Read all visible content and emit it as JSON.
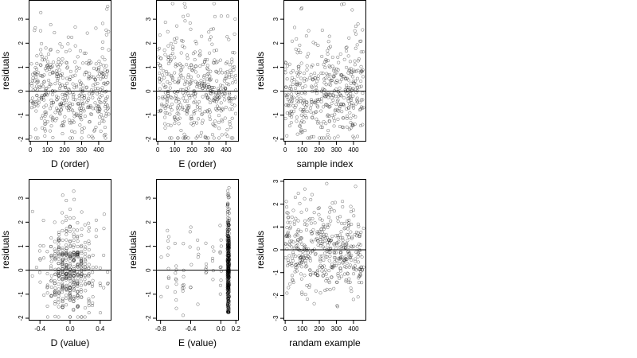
{
  "figure": {
    "background": "#ffffff",
    "point_color": "#000000",
    "point_fill": "none",
    "point_opacity": 0.55,
    "reference_line": {
      "y": 0,
      "color": "#000000"
    }
  },
  "chart_data": [
    {
      "id": "panel-d-order",
      "type": "scatter",
      "xlabel": "D (order)",
      "ylabel": "residuals",
      "xlim": [
        -10,
        475
      ],
      "ylim": [
        -2.1,
        3.8
      ],
      "xticks": [
        0,
        100,
        200,
        300,
        400
      ],
      "xtick_labels": [
        "0",
        "100",
        "200",
        "300",
        "400"
      ],
      "yticks": [
        -2,
        -1,
        0,
        1,
        2,
        3
      ],
      "ytick_labels": [
        "-2",
        "-1",
        "0",
        "1",
        "2",
        "3"
      ],
      "points_approx": 450,
      "x_distribution": "uniform order index 0-460",
      "y_distribution": "residuals mostly between -1.6 and 1.5, spread up to 3.6 and down to -1.9"
    },
    {
      "id": "panel-e-order",
      "type": "scatter",
      "xlabel": "E (order)",
      "ylabel": "residuals",
      "xlim": [
        -10,
        475
      ],
      "ylim": [
        -2.1,
        3.8
      ],
      "xticks": [
        0,
        100,
        200,
        300,
        400
      ],
      "xtick_labels": [
        "0",
        "100",
        "200",
        "300",
        "400"
      ],
      "yticks": [
        -2,
        -1,
        0,
        1,
        2,
        3
      ],
      "ytick_labels": [
        "-2",
        "-1",
        "0",
        "1",
        "2",
        "3"
      ],
      "points_approx": 450,
      "x_distribution": "uniform order index 0-460",
      "y_distribution": "residuals mostly between -1.6 and 1.5, spread up to 3.6 and down to -1.9"
    },
    {
      "id": "panel-sample-index",
      "type": "scatter",
      "xlabel": "sample index",
      "ylabel": "residuals",
      "xlim": [
        -10,
        475
      ],
      "ylim": [
        -2.1,
        3.8
      ],
      "xticks": [
        0,
        100,
        200,
        300,
        400
      ],
      "xtick_labels": [
        "0",
        "100",
        "200",
        "300",
        "400"
      ],
      "yticks": [
        -2,
        -1,
        0,
        1,
        2,
        3
      ],
      "ytick_labels": [
        "-2",
        "-1",
        "0",
        "1",
        "2",
        "3"
      ],
      "points_approx": 450,
      "x_distribution": "uniform sample index 0-460",
      "y_distribution": "residuals mostly between -1.6 and 1.5, spread up to 3.6 and down to -1.9"
    },
    {
      "id": "panel-d-value",
      "type": "scatter",
      "xlabel": "D (value)",
      "ylabel": "residuals",
      "xlim": [
        -0.55,
        0.55
      ],
      "ylim": [
        -2.1,
        3.8
      ],
      "xticks": [
        -0.4,
        0,
        0.4
      ],
      "xtick_labels": [
        "-0.4",
        "0.0",
        "0.4"
      ],
      "yticks": [
        -2,
        -1,
        0,
        1,
        2,
        3
      ],
      "ytick_labels": [
        "-2",
        "-1",
        "0",
        "1",
        "2",
        "3"
      ],
      "points_approx": 450,
      "x_distribution": "D values concentrated between -0.4 and 0.4, densest near 0",
      "y_distribution": "residuals mostly between -1.6 and 1.5, spread up to 3.6 and down to -1.9"
    },
    {
      "id": "panel-e-value",
      "type": "scatter",
      "xlabel": "E (value)",
      "ylabel": "residuals",
      "xlim": [
        -0.86,
        0.24
      ],
      "ylim": [
        -2.1,
        3.8
      ],
      "xticks": [
        -0.8,
        -0.4,
        0,
        0.2
      ],
      "xtick_labels": [
        "-0.8",
        "-0.4",
        "0.0",
        "0.2"
      ],
      "yticks": [
        -2,
        -1,
        0,
        1,
        2,
        3
      ],
      "ytick_labels": [
        "-2",
        "-1",
        "0",
        "1",
        "2",
        "3"
      ],
      "points_approx": 450,
      "x_distribution": "most E values in a dense vertical band at about 0.1; sparse points spread from -0.8 to 0.2",
      "y_distribution": "dense band spans -1.7 to 3.6; sparse points mostly between -1 and 1.5"
    },
    {
      "id": "panel-random-example",
      "type": "scatter",
      "xlabel": "randam example",
      "ylabel": "residuals",
      "xlim": [
        -10,
        475
      ],
      "ylim": [
        -3.1,
        3.1
      ],
      "xticks": [
        0,
        100,
        200,
        300,
        400
      ],
      "xtick_labels": [
        "0",
        "100",
        "200",
        "300",
        "400"
      ],
      "yticks": [
        -3,
        -2,
        -1,
        0,
        1,
        2,
        3
      ],
      "ytick_labels": [
        "-3",
        "-2",
        "-1",
        "0",
        "1",
        "2",
        "3"
      ],
      "points_approx": 450,
      "x_distribution": "uniform index 0-460",
      "y_distribution": "roughly normal residuals, mostly between -2 and 2, extremes near -2.8 and 2.8"
    }
  ]
}
